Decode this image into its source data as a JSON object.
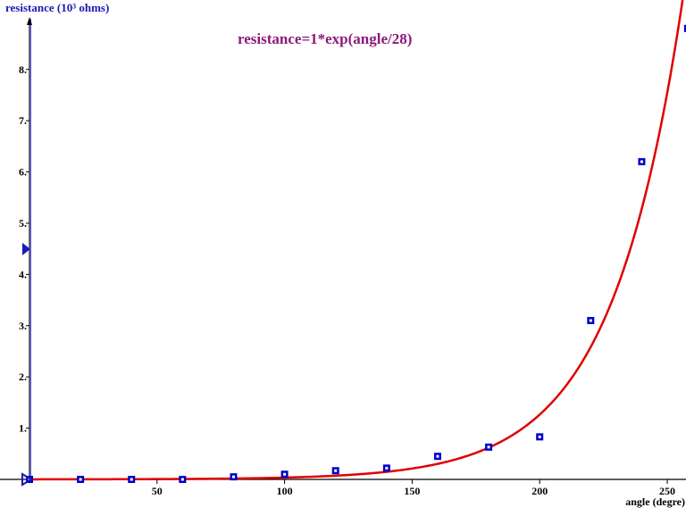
{
  "chart_data": {
    "type": "scatter",
    "title": "resistance=1*exp(angle/28)",
    "xlabel": "angle (degre)",
    "ylabel": "resistance (10³ ohms)",
    "xlim": [
      0,
      258
    ],
    "ylim": [
      0,
      8.8
    ],
    "x_ticks": [
      50,
      100,
      150,
      200,
      250
    ],
    "x_tick_labels": [
      "50",
      "100",
      "150",
      "200",
      "250"
    ],
    "y_ticks": [
      1,
      2,
      3,
      4,
      5,
      6,
      7,
      8
    ],
    "y_tick_labels": [
      "1.",
      "2.",
      "3.",
      "4.",
      "5.",
      "6.",
      "7.",
      "8."
    ],
    "grid": false,
    "series": [
      {
        "kind": "points",
        "x": [
          0,
          20,
          40,
          60,
          80,
          100,
          120,
          140,
          160,
          180,
          200,
          220,
          240,
          258
        ],
        "y": [
          0.0,
          0.0,
          0.0,
          0.0,
          0.05,
          0.1,
          0.17,
          0.22,
          0.45,
          0.63,
          0.83,
          3.1,
          6.2,
          8.8
        ]
      },
      {
        "kind": "curve",
        "formula": "1*exp(angle/28)"
      }
    ],
    "colors": {
      "points": "#0000cc",
      "curve": "#e00000",
      "title": "#8b1a7a",
      "ylabel": "#1a1ab4",
      "axis": "#000000"
    }
  }
}
